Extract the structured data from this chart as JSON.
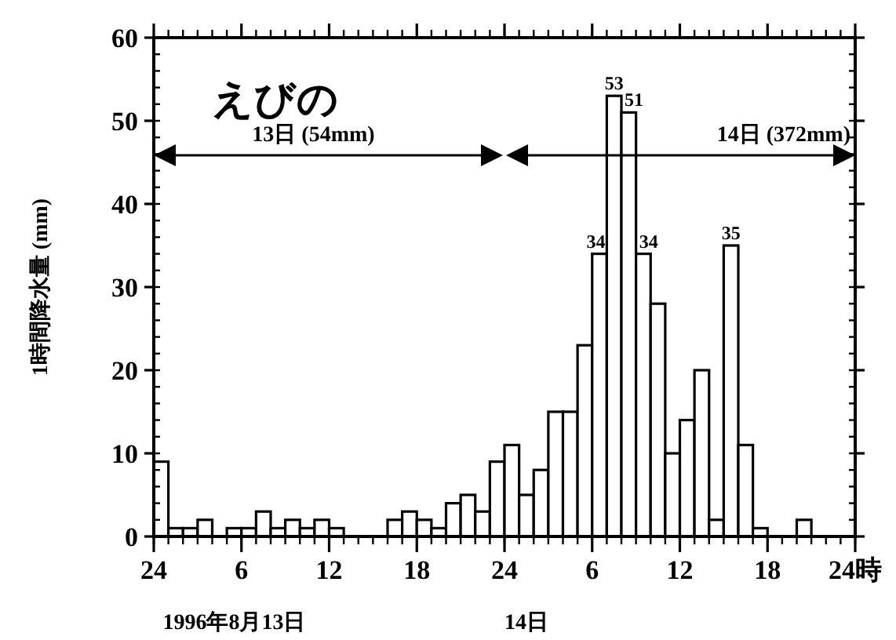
{
  "chart_data": {
    "type": "bar",
    "title": "えびの",
    "ylabel": "1時間降水量 (mm)",
    "x": [
      "1996-08-13T00:30",
      "1996-08-13T01:30",
      "1996-08-13T02:30",
      "1996-08-13T03:30",
      "1996-08-13T04:30",
      "1996-08-13T05:30",
      "1996-08-13T06:30",
      "1996-08-13T07:30",
      "1996-08-13T08:30",
      "1996-08-13T09:30",
      "1996-08-13T10:30",
      "1996-08-13T11:30",
      "1996-08-13T12:30",
      "1996-08-13T13:30",
      "1996-08-13T14:30",
      "1996-08-13T15:30",
      "1996-08-13T16:30",
      "1996-08-13T17:30",
      "1996-08-13T18:30",
      "1996-08-13T19:30",
      "1996-08-13T20:30",
      "1996-08-13T21:30",
      "1996-08-13T22:30",
      "1996-08-13T23:30",
      "1996-08-14T00:30",
      "1996-08-14T01:30",
      "1996-08-14T02:30",
      "1996-08-14T03:30",
      "1996-08-14T04:30",
      "1996-08-14T05:30",
      "1996-08-14T06:30",
      "1996-08-14T07:30",
      "1996-08-14T08:30",
      "1996-08-14T09:30",
      "1996-08-14T10:30",
      "1996-08-14T11:30",
      "1996-08-14T12:30",
      "1996-08-14T13:30",
      "1996-08-14T14:30",
      "1996-08-14T15:30",
      "1996-08-14T16:30",
      "1996-08-14T17:30",
      "1996-08-14T18:30",
      "1996-08-14T19:30",
      "1996-08-14T20:30",
      "1996-08-14T21:30",
      "1996-08-14T22:30",
      "1996-08-14T23:30"
    ],
    "values": [
      9,
      1,
      1,
      2,
      0,
      1,
      1,
      3,
      1,
      2,
      1,
      2,
      1,
      0,
      0,
      0,
      2,
      3,
      2,
      1,
      4,
      5,
      3,
      9,
      11,
      5,
      8,
      15,
      15,
      23,
      34,
      53,
      51,
      34,
      28,
      10,
      14,
      20,
      2,
      35,
      11,
      1,
      0,
      0,
      2,
      0,
      0,
      0
    ],
    "value_labels": [
      null,
      null,
      null,
      null,
      null,
      null,
      null,
      null,
      null,
      null,
      null,
      null,
      null,
      null,
      null,
      null,
      null,
      null,
      null,
      null,
      null,
      null,
      null,
      null,
      null,
      null,
      null,
      null,
      null,
      null,
      "34",
      "53",
      "51",
      "34",
      null,
      null,
      null,
      null,
      null,
      "35",
      null,
      null,
      null,
      null,
      null,
      null,
      null,
      null
    ],
    "color": "#ffffff",
    "xlim": [
      "1996-08-13T00:00",
      "1996-08-15T00:00"
    ],
    "xticks": [
      {
        "value": "1996-08-13T00:00",
        "label": "24"
      },
      {
        "value": "1996-08-13T06:00",
        "label": "6"
      },
      {
        "value": "1996-08-13T12:00",
        "label": "12"
      },
      {
        "value": "1996-08-13T18:00",
        "label": "18"
      },
      {
        "value": "1996-08-14T00:00",
        "label": "24"
      },
      {
        "value": "1996-08-14T06:00",
        "label": "6"
      },
      {
        "value": "1996-08-14T12:00",
        "label": "12"
      },
      {
        "value": "1996-08-14T18:00",
        "label": "18"
      },
      {
        "value": "1996-08-15T00:00",
        "label": "24時"
      }
    ],
    "ylim": [
      0,
      60
    ],
    "yticks": [
      0,
      10,
      20,
      30,
      40,
      50,
      60
    ],
    "annotations": [
      "13日 (54mm)",
      "14日 (372mm)",
      "1996年8月13日",
      "14日"
    ],
    "grid": false
  }
}
